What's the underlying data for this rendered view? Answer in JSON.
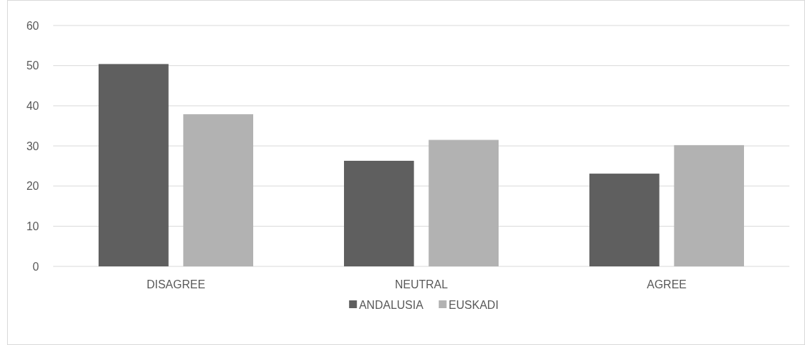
{
  "chart_data": {
    "type": "bar",
    "categories": [
      "DISAGREE",
      "NEUTRAL",
      "AGREE"
    ],
    "series": [
      {
        "name": "ANDALUSIA",
        "color": "#5f5f5f",
        "values": [
          50.4,
          26.3,
          23.1
        ]
      },
      {
        "name": "EUSKADI",
        "color": "#b2b2b2",
        "values": [
          37.9,
          31.5,
          30.2
        ]
      }
    ],
    "ylim": [
      0,
      60
    ],
    "yticks": [
      0,
      10,
      20,
      30,
      40,
      50,
      60
    ],
    "grid": "y",
    "legend": "bottom"
  }
}
